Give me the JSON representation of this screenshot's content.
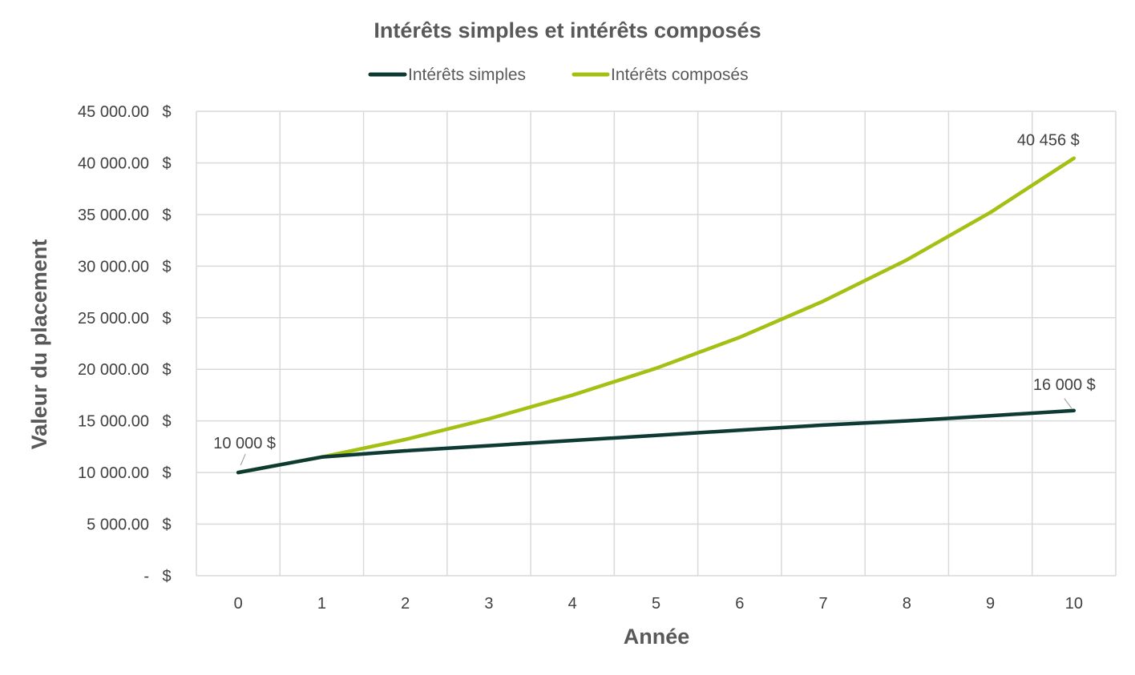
{
  "chart_data": {
    "type": "line",
    "title": "Intérêts simples et intérêts composés",
    "xlabel": "Année",
    "ylabel": "Valeur du placement",
    "x": [
      0,
      1,
      2,
      3,
      4,
      5,
      6,
      7,
      8,
      9,
      10
    ],
    "x_tick_labels": [
      "0",
      "1",
      "2",
      "3",
      "4",
      "5",
      "6",
      "7",
      "8",
      "9",
      "10"
    ],
    "ylim": [
      0,
      45000
    ],
    "y_ticks": [
      0,
      5000,
      10000,
      15000,
      20000,
      25000,
      30000,
      35000,
      40000,
      45000
    ],
    "y_tick_labels": [
      "-",
      "5 000.00",
      "10 000.00",
      "15 000.00",
      "20 000.00",
      "25 000.00",
      "30 000.00",
      "35 000.00",
      "40 000.00",
      "45 000.00"
    ],
    "y_tick_suffix": "$",
    "grid": true,
    "legend_position": "top",
    "series": [
      {
        "name": "Intérêts simples",
        "color": "#0d3b34",
        "values": [
          10000,
          11500,
          12100,
          12600,
          13100,
          13600,
          14100,
          14600,
          15000,
          15500,
          16000
        ]
      },
      {
        "name": "Intérêts composés",
        "color": "#a3c113",
        "values": [
          10000,
          11500,
          13200,
          15200,
          17500,
          20100,
          23100,
          26600,
          30600,
          35200,
          40456
        ]
      }
    ],
    "annotations": [
      {
        "text": "10 000 $",
        "x": 0,
        "y": 10000
      },
      {
        "text": "16 000 $",
        "x": 10,
        "y": 16000
      },
      {
        "text": "40 456 $",
        "x": 10,
        "y": 40456
      }
    ]
  }
}
